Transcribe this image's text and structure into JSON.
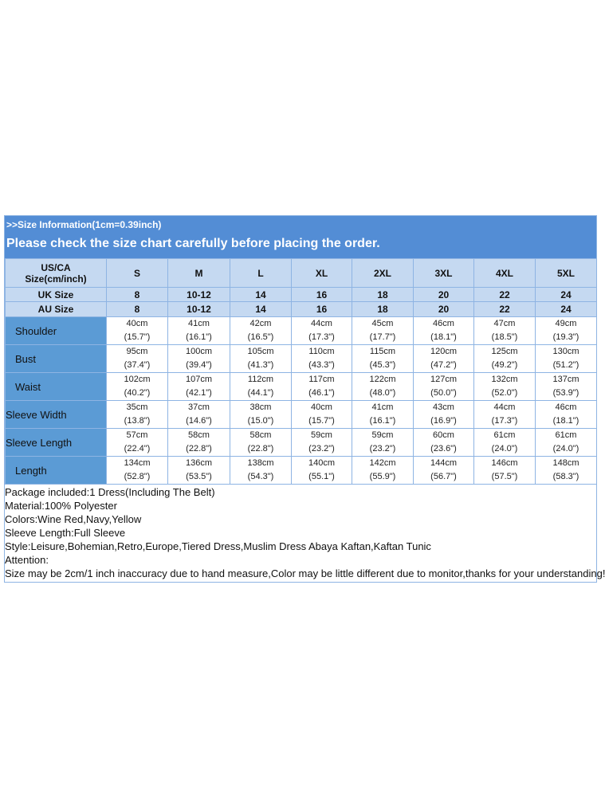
{
  "header": {
    "info": ">>Size Information(1cm=0.39inch)",
    "notice": "Please check the size chart carefully before placing the order."
  },
  "table": {
    "size_row": [
      "US/CA Size(cm/inch)",
      "S",
      "M",
      "L",
      "XL",
      "2XL",
      "3XL",
      "4XL",
      "5XL"
    ],
    "uk_row": [
      "UK Size",
      "8",
      "10-12",
      "14",
      "16",
      "18",
      "20",
      "22",
      "24"
    ],
    "au_row": [
      "AU Size",
      "8",
      "10-12",
      "14",
      "16",
      "18",
      "20",
      "22",
      "24"
    ],
    "rows": [
      {
        "label": "Shoulder",
        "cells": [
          [
            "40cm",
            "(15.7\")"
          ],
          [
            "41cm",
            "(16.1\")"
          ],
          [
            "42cm",
            "(16.5\")"
          ],
          [
            "44cm",
            "(17.3\")"
          ],
          [
            "45cm",
            "(17.7\")"
          ],
          [
            "46cm",
            "(18.1\")"
          ],
          [
            "47cm",
            "(18.5\")"
          ],
          [
            "49cm",
            "(19.3\")"
          ]
        ]
      },
      {
        "label": "Bust",
        "cells": [
          [
            "95cm",
            "(37.4\")"
          ],
          [
            "100cm",
            "(39.4\")"
          ],
          [
            "105cm",
            "(41.3\")"
          ],
          [
            "110cm",
            "(43.3\")"
          ],
          [
            "115cm",
            "(45.3\")"
          ],
          [
            "120cm",
            "(47.2\")"
          ],
          [
            "125cm",
            "(49.2\")"
          ],
          [
            "130cm",
            "(51.2\")"
          ]
        ]
      },
      {
        "label": "Waist",
        "cells": [
          [
            "102cm",
            "(40.2\")"
          ],
          [
            "107cm",
            "(42.1\")"
          ],
          [
            "112cm",
            "(44.1\")"
          ],
          [
            "117cm",
            "(46.1\")"
          ],
          [
            "122cm",
            "(48.0\")"
          ],
          [
            "127cm",
            "(50.0\")"
          ],
          [
            "132cm",
            "(52.0\")"
          ],
          [
            "137cm",
            "(53.9\")"
          ]
        ]
      },
      {
        "label": "Sleeve Width",
        "cells": [
          [
            "35cm",
            "(13.8\")"
          ],
          [
            "37cm",
            "(14.6\")"
          ],
          [
            "38cm",
            "(15.0\")"
          ],
          [
            "40cm",
            "(15.7\")"
          ],
          [
            "41cm",
            "(16.1\")"
          ],
          [
            "43cm",
            "(16.9\")"
          ],
          [
            "44cm",
            "(17.3\")"
          ],
          [
            "46cm",
            "(18.1\")"
          ]
        ]
      },
      {
        "label": "Sleeve Length",
        "cells": [
          [
            "57cm",
            "(22.4\")"
          ],
          [
            "58cm",
            "(22.8\")"
          ],
          [
            "58cm",
            "(22.8\")"
          ],
          [
            "59cm",
            "(23.2\")"
          ],
          [
            "59cm",
            "(23.2\")"
          ],
          [
            "60cm",
            "(23.6\")"
          ],
          [
            "61cm",
            "(24.0\")"
          ],
          [
            "61cm",
            "(24.0\")"
          ]
        ]
      },
      {
        "label": "Length",
        "cells": [
          [
            "134cm",
            "(52.8\")"
          ],
          [
            "136cm",
            "(53.5\")"
          ],
          [
            "138cm",
            "(54.3\")"
          ],
          [
            "140cm",
            "(55.1\")"
          ],
          [
            "142cm",
            "(55.9\")"
          ],
          [
            "144cm",
            "(56.7\")"
          ],
          [
            "146cm",
            "(57.5\")"
          ],
          [
            "148cm",
            "(58.3\")"
          ]
        ]
      }
    ]
  },
  "notes": [
    "Package included:1 Dress(Including The Belt)",
    "Material:100% Polyester",
    "Colors:Wine Red,Navy,Yellow",
    "Sleeve Length:Full Sleeve",
    "Style:Leisure,Bohemian,Retro,Europe,Tiered Dress,Muslim Dress Abaya Kaftan,Kaftan Tunic",
    "Attention:",
    "Size may be 2cm/1 inch inaccuracy due to hand measure,Color may be little different due to monitor,thanks for your understanding!"
  ]
}
